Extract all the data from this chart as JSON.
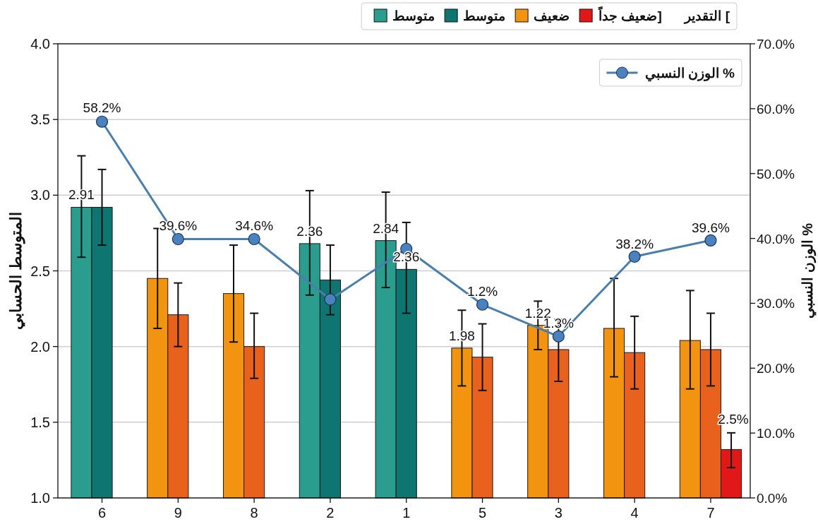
{
  "chart_data": {
    "type": "bar",
    "ylabel": "المتوسط الحسابي",
    "y2label": "الوزن النسبي %",
    "legend_title": "التقدير [",
    "categories": [
      "6",
      "9",
      "8",
      "2",
      "1",
      "5",
      "3",
      "4",
      "7"
    ],
    "series": [
      {
        "name": "متوسط",
        "color": "#2a9d8f",
        "values": [
          2.92,
          null,
          null,
          2.68,
          2.7,
          null,
          null,
          null,
          null
        ],
        "errors": [
          [
            2.59,
            3.26
          ],
          null,
          null,
          [
            2.34,
            3.03
          ],
          [
            2.39,
            3.02
          ],
          null,
          null,
          null,
          null
        ]
      },
      {
        "name": "متوسط",
        "color": "#0f7571",
        "values": [
          2.92,
          null,
          null,
          2.44,
          2.51,
          null,
          null,
          null,
          null
        ],
        "errors": [
          [
            2.67,
            3.17
          ],
          null,
          null,
          [
            2.21,
            2.67
          ],
          [
            2.22,
            2.82
          ],
          null,
          null,
          null,
          null
        ]
      },
      {
        "name": "ضعيف",
        "color": "#f39410",
        "values": [
          null,
          2.45,
          2.35,
          null,
          null,
          1.99,
          2.14,
          2.12,
          2.04
        ],
        "errors": [
          null,
          [
            2.12,
            2.78
          ],
          [
            2.03,
            2.67
          ],
          null,
          null,
          [
            1.74,
            2.24
          ],
          [
            1.98,
            2.3
          ],
          [
            1.8,
            2.45
          ],
          [
            1.72,
            2.37
          ]
        ]
      },
      {
        "color": "#e8621d",
        "values": [
          null,
          2.21,
          2.0,
          null,
          null,
          1.93,
          1.98,
          1.96,
          1.98
        ],
        "errors": [
          null,
          [
            2.0,
            2.42
          ],
          [
            1.79,
            2.22
          ],
          null,
          null,
          [
            1.71,
            2.15
          ],
          [
            1.77,
            2.18
          ],
          [
            1.72,
            2.2
          ],
          [
            1.74,
            2.22
          ]
        ]
      },
      {
        "name": "ضعيف جداً]",
        "color": "#e01818",
        "values": [
          null,
          null,
          null,
          null,
          null,
          null,
          null,
          null,
          1.32
        ],
        "errors": [
          null,
          null,
          null,
          null,
          null,
          null,
          null,
          null,
          [
            1.2,
            1.43
          ]
        ]
      },
      {
        "name": "الوزن النسبي %",
        "type": "line",
        "axis": "y2",
        "color": "#4a7fab",
        "marker": "circle",
        "line_style": "solid",
        "values": [
          58.0,
          39.9,
          39.9,
          30.6,
          38.4,
          29.8,
          24.9,
          37.2,
          39.7
        ]
      }
    ],
    "ylim": [
      1.0,
      4.0
    ],
    "yticks": [
      {
        "value": 1.0,
        "label": "1.0"
      },
      {
        "value": 1.5,
        "label": "1.5"
      },
      {
        "value": 2.0,
        "label": "2.0"
      },
      {
        "value": 2.5,
        "label": "2.5"
      },
      {
        "value": 3.0,
        "label": "3.0"
      },
      {
        "value": 3.5,
        "label": "3.5"
      },
      {
        "value": 4.0,
        "label": "4.0"
      }
    ],
    "y2lim": [
      0,
      70
    ],
    "y2ticks": [
      {
        "value": 0,
        "label": "0.0%"
      },
      {
        "value": 10,
        "label": "10.0%"
      },
      {
        "value": 20,
        "label": "20.0%"
      },
      {
        "value": 30,
        "label": "30.0%"
      },
      {
        "value": 40,
        "label": "40.0%"
      },
      {
        "value": 50,
        "label": "50.0%"
      },
      {
        "value": 60,
        "label": "60.0%"
      },
      {
        "value": 70,
        "label": "70.0%"
      }
    ],
    "grid": "y",
    "legend": "top right",
    "annotations": [
      {
        "text": "58.2%",
        "x": "6",
        "y": 3.49
      },
      {
        "text": "2.91",
        "x": "6",
        "y": 2.92
      },
      {
        "text": "39.6%",
        "x": "9",
        "y": 2.71
      },
      {
        "text": "34.6%",
        "x": "8",
        "y": 2.71
      },
      {
        "text": "2.36",
        "x": "2",
        "y": 2.68
      },
      {
        "text": "2.84",
        "x": "1",
        "y": 2.7
      },
      {
        "text": "2.36",
        "x": "1",
        "y": 2.51
      },
      {
        "text": "1.2%",
        "x": "5",
        "y": 2.28
      },
      {
        "text": "1.98",
        "x": "5",
        "y": 1.99
      },
      {
        "text": "1.22",
        "x": "3",
        "y": 2.14
      },
      {
        "text": "1.3%",
        "x": "3",
        "y": 2.07
      },
      {
        "text": "38.2%",
        "x": "4",
        "y": 2.59
      },
      {
        "text": "39.6%",
        "x": "7",
        "y": 2.7
      },
      "2.5%"
    ]
  }
}
